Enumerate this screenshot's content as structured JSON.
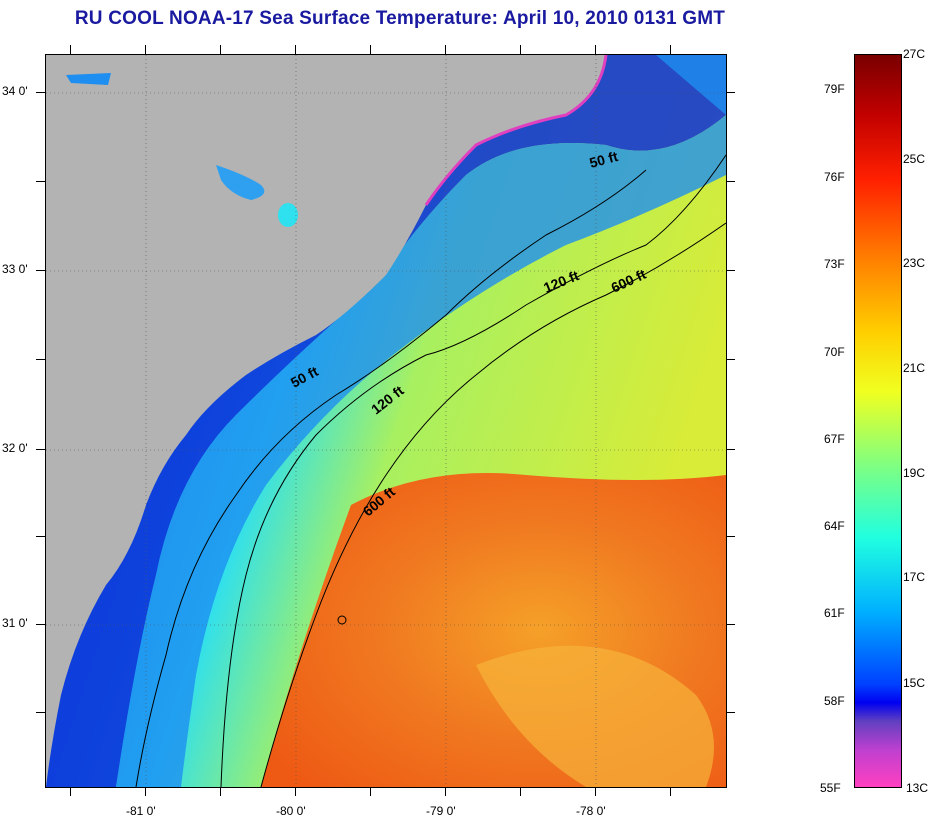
{
  "title": "RU COOL  NOAA-17  Sea Surface Temperature:  April 10, 2010 0131 GMT",
  "map": {
    "lat_labels": [
      "34 0'",
      "33 0'",
      "32 0'",
      "31 0'"
    ],
    "lon_labels": [
      "-81 0'",
      "-80 0'",
      "-79 0'",
      "-78 0'"
    ],
    "contours": [
      "50 ft",
      "50 ft",
      "120 ft",
      "120 ft",
      "600 ft",
      "600 ft"
    ],
    "colors": {
      "land": "#b3b3b3",
      "coastal_cold": "#0a2dd8",
      "shelf": "#1e8ef0",
      "mid_shelf": "#2fe0ee",
      "slope": "#c8f040",
      "gulf_stream": "#f27a1a",
      "gulf_stream_core": "#ee5a14"
    }
  },
  "colorbar": {
    "fahrenheit": [
      "79F",
      "76F",
      "73F",
      "70F",
      "67F",
      "64F",
      "61F",
      "58F",
      "55F"
    ],
    "celsius": [
      "27C",
      "25C",
      "23C",
      "21C",
      "19C",
      "17C",
      "15C",
      "13C"
    ]
  }
}
